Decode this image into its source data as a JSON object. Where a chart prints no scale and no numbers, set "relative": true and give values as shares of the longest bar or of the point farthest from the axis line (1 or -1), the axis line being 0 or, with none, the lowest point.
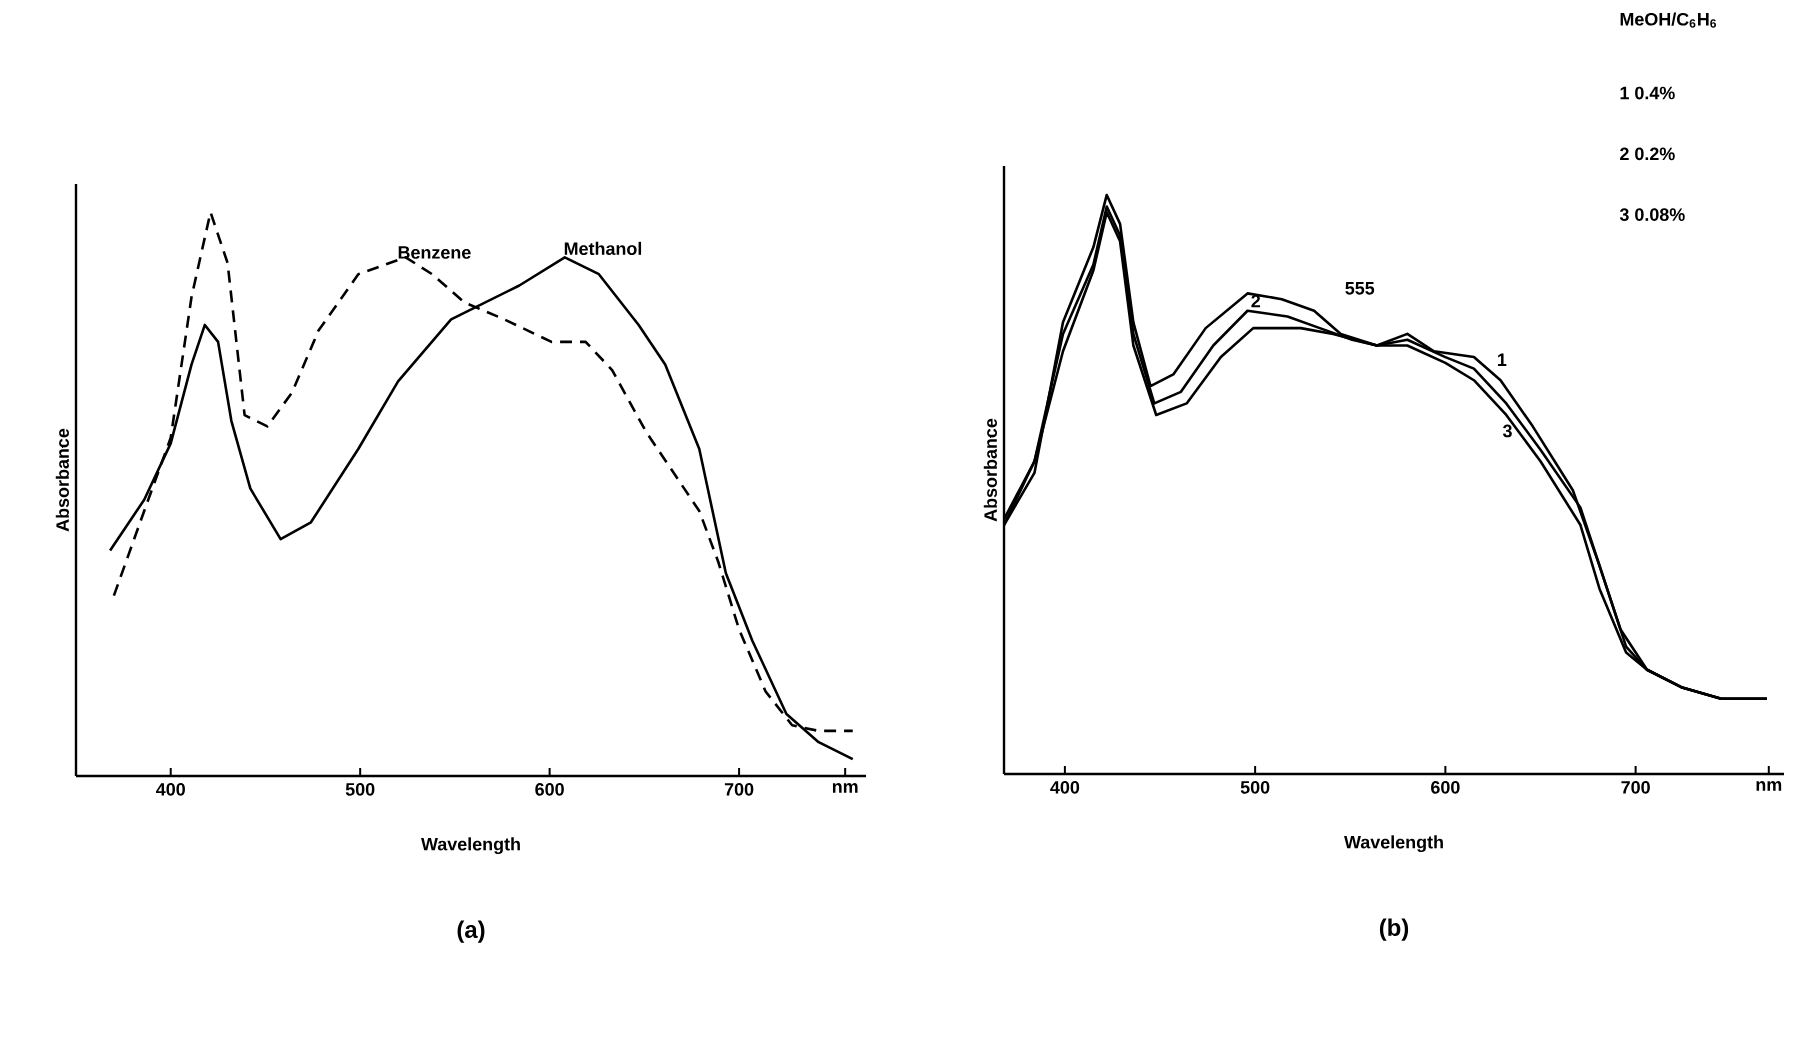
{
  "chart_data": [
    {
      "type": "line",
      "title": "(a)",
      "xlabel": "Wavelength",
      "ylabel": "Absorbance",
      "relative": true,
      "xlim": [
        350,
        767
      ],
      "xticks": [
        400,
        500,
        600,
        700,
        {
          "value": 756,
          "label": "nm"
        }
      ],
      "series": [
        {
          "name": "Benzene",
          "color": "#000000",
          "line_style": "dashed",
          "x": [
            370,
            386,
            400,
            411,
            421,
            430,
            439,
            451,
            464,
            478,
            499,
            524,
            538,
            555,
            576,
            601,
            619,
            633,
            651,
            665,
            679,
            689,
            700,
            714,
            728,
            742,
            760
          ],
          "values": [
            0.32,
            0.47,
            0.6,
            0.85,
            1.0,
            0.91,
            0.64,
            0.62,
            0.68,
            0.79,
            0.89,
            0.92,
            0.89,
            0.84,
            0.81,
            0.77,
            0.77,
            0.72,
            0.61,
            0.54,
            0.47,
            0.38,
            0.26,
            0.15,
            0.09,
            0.08,
            0.08
          ]
        },
        {
          "name": "Methanol",
          "color": "#000000",
          "line_style": "solid",
          "x": [
            368,
            386,
            400,
            411,
            418,
            425,
            432,
            442,
            458,
            474,
            499,
            520,
            548,
            584,
            608,
            626,
            647,
            661,
            679,
            693,
            707,
            725,
            742,
            760
          ],
          "values": [
            0.4,
            0.49,
            0.59,
            0.73,
            0.8,
            0.77,
            0.63,
            0.51,
            0.42,
            0.45,
            0.58,
            0.7,
            0.81,
            0.87,
            0.92,
            0.89,
            0.8,
            0.73,
            0.58,
            0.36,
            0.24,
            0.11,
            0.06,
            0.03
          ]
        }
      ]
    },
    {
      "type": "line",
      "title": "(b)",
      "xlabel": "Wavelength",
      "ylabel": "Absorbance",
      "relative": true,
      "xlim": [
        368,
        778
      ],
      "xticks": [
        400,
        500,
        600,
        700,
        {
          "value": 770,
          "label": "nm"
        }
      ],
      "annotations": [
        "MeOH/C$_{6}$H$_{6}$",
        "1  0.4%",
        "2  0.2%",
        "3  0.08%",
        {
          "text": "555",
          "x": 555,
          "y": 0.74
        }
      ],
      "series": [
        {
          "name": "1",
          "color": "#000000",
          "x": [
            368,
            384,
            399,
            415,
            422,
            429,
            436,
            445,
            457,
            474,
            496,
            514,
            531,
            545,
            564,
            580,
            594,
            615,
            629,
            646,
            667,
            681,
            692,
            706,
            724,
            745,
            769
          ],
          "values": [
            0.43,
            0.52,
            0.78,
            0.91,
            1.0,
            0.95,
            0.78,
            0.67,
            0.69,
            0.77,
            0.83,
            0.82,
            0.8,
            0.76,
            0.74,
            0.76,
            0.73,
            0.72,
            0.68,
            0.6,
            0.49,
            0.36,
            0.25,
            0.18,
            0.15,
            0.13,
            0.13
          ]
        },
        {
          "name": "2",
          "color": "#000000",
          "x": [
            368,
            384,
            399,
            415,
            422,
            429,
            436,
            447,
            461,
            478,
            496,
            517,
            534,
            551,
            564,
            580,
            600,
            615,
            632,
            650,
            671,
            683,
            695,
            706,
            724,
            745,
            769
          ],
          "values": [
            0.44,
            0.54,
            0.76,
            0.88,
            0.98,
            0.93,
            0.76,
            0.64,
            0.66,
            0.74,
            0.8,
            0.79,
            0.77,
            0.75,
            0.74,
            0.75,
            0.72,
            0.7,
            0.64,
            0.56,
            0.46,
            0.34,
            0.22,
            0.18,
            0.15,
            0.13,
            0.13
          ]
        },
        {
          "name": "3",
          "color": "#000000",
          "x": [
            368,
            384,
            399,
            415,
            422,
            429,
            436,
            448,
            464,
            482,
            499,
            524,
            541,
            564,
            580,
            600,
            615,
            632,
            650,
            671,
            681,
            695,
            706,
            724,
            745,
            769
          ],
          "values": [
            0.43,
            0.54,
            0.73,
            0.87,
            0.97,
            0.92,
            0.74,
            0.62,
            0.64,
            0.72,
            0.77,
            0.77,
            0.76,
            0.74,
            0.74,
            0.71,
            0.68,
            0.62,
            0.54,
            0.43,
            0.32,
            0.21,
            0.18,
            0.15,
            0.13,
            0.13
          ]
        }
      ]
    }
  ]
}
